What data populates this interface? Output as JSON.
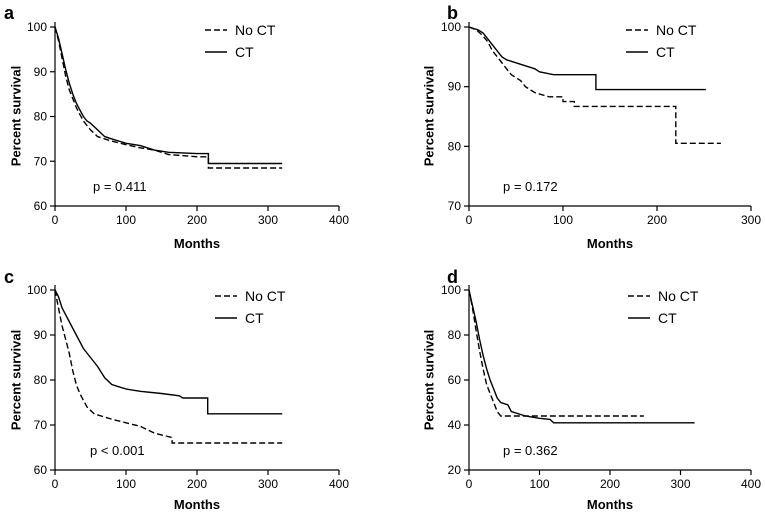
{
  "chart_data": [
    {
      "type": "line",
      "panel_label": "a",
      "xlabel": "Months",
      "ylabel": "Percent survival",
      "xlim": [
        0,
        400
      ],
      "ylim": [
        60,
        100
      ],
      "xticks": [
        "0",
        "100",
        "200",
        "300",
        "400"
      ],
      "yticks": [
        "60",
        "70",
        "80",
        "90",
        "100"
      ],
      "legend": {
        "position": "top-right",
        "entries": [
          "No CT",
          "CT"
        ]
      },
      "annotation": "p = 0.411",
      "series": [
        {
          "name": "No CT",
          "style": "dashed",
          "points": [
            [
              0,
              100
            ],
            [
              5,
              97
            ],
            [
              10,
              93
            ],
            [
              15,
              89
            ],
            [
              20,
              86
            ],
            [
              25,
              84
            ],
            [
              30,
              82
            ],
            [
              35,
              80.5
            ],
            [
              40,
              79
            ],
            [
              50,
              77
            ],
            [
              60,
              75.5
            ],
            [
              70,
              75
            ],
            [
              80,
              74.5
            ],
            [
              100,
              73.7
            ],
            [
              120,
              73
            ],
            [
              140,
              72.5
            ],
            [
              160,
              71.5
            ],
            [
              200,
              71
            ],
            [
              216,
              71
            ],
            [
              216,
              68.5
            ],
            [
              320,
              68.5
            ]
          ]
        },
        {
          "name": "CT",
          "style": "solid",
          "points": [
            [
              0,
              100
            ],
            [
              5,
              97.5
            ],
            [
              10,
              94
            ],
            [
              15,
              90.5
            ],
            [
              20,
              87.5
            ],
            [
              25,
              85
            ],
            [
              30,
              83
            ],
            [
              35,
              81.5
            ],
            [
              40,
              80
            ],
            [
              45,
              79
            ],
            [
              50,
              78.5
            ],
            [
              60,
              77
            ],
            [
              70,
              75.5
            ],
            [
              80,
              75
            ],
            [
              100,
              74
            ],
            [
              120,
              73.5
            ],
            [
              140,
              72.5
            ],
            [
              160,
              72
            ],
            [
              200,
              71.7
            ],
            [
              216,
              71.7
            ],
            [
              216,
              69.5
            ],
            [
              320,
              69.5
            ]
          ]
        }
      ]
    },
    {
      "type": "line",
      "panel_label": "b",
      "xlabel": "Months",
      "ylabel": "Percent survival",
      "xlim": [
        0,
        300
      ],
      "ylim": [
        70,
        100
      ],
      "xticks": [
        "0",
        "100",
        "200",
        "300"
      ],
      "yticks": [
        "70",
        "80",
        "90",
        "100"
      ],
      "legend": {
        "position": "top-right",
        "entries": [
          "No CT",
          "CT"
        ]
      },
      "annotation": "p = 0.172",
      "series": [
        {
          "name": "No CT",
          "style": "dashed",
          "points": [
            [
              0,
              100
            ],
            [
              8,
              99.5
            ],
            [
              15,
              98.5
            ],
            [
              20,
              97.5
            ],
            [
              25,
              96
            ],
            [
              30,
              95
            ],
            [
              35,
              94
            ],
            [
              40,
              93
            ],
            [
              45,
              92
            ],
            [
              55,
              91
            ],
            [
              60,
              90
            ],
            [
              70,
              89
            ],
            [
              85,
              88.3
            ],
            [
              100,
              88.3
            ],
            [
              100,
              87.5
            ],
            [
              112,
              87.5
            ],
            [
              112,
              86.7
            ],
            [
              220,
              86.7
            ],
            [
              220,
              80.5
            ],
            [
              268,
              80.5
            ]
          ]
        },
        {
          "name": "CT",
          "style": "solid",
          "points": [
            [
              0,
              100
            ],
            [
              10,
              99.5
            ],
            [
              15,
              99
            ],
            [
              20,
              98
            ],
            [
              25,
              97
            ],
            [
              30,
              96
            ],
            [
              35,
              95
            ],
            [
              40,
              94.5
            ],
            [
              50,
              94
            ],
            [
              60,
              93.5
            ],
            [
              70,
              93
            ],
            [
              75,
              92.5
            ],
            [
              90,
              92
            ],
            [
              135,
              92
            ],
            [
              135,
              89.5
            ],
            [
              252,
              89.5
            ]
          ]
        }
      ]
    },
    {
      "type": "line",
      "panel_label": "c",
      "xlabel": "Months",
      "ylabel": "Percent survival",
      "xlim": [
        0,
        400
      ],
      "ylim": [
        60,
        100
      ],
      "xticks": [
        "0",
        "100",
        "200",
        "300",
        "400"
      ],
      "yticks": [
        "60",
        "70",
        "80",
        "90",
        "100"
      ],
      "legend": {
        "position": "top-right",
        "entries": [
          "No CT",
          "CT"
        ]
      },
      "annotation": "p < 0.001",
      "series": [
        {
          "name": "No CT",
          "style": "dashed",
          "points": [
            [
              0,
              100
            ],
            [
              5,
              96
            ],
            [
              10,
              92
            ],
            [
              15,
              89
            ],
            [
              20,
              86
            ],
            [
              25,
              82
            ],
            [
              30,
              79
            ],
            [
              35,
              77
            ],
            [
              40,
              75.5
            ],
            [
              45,
              74
            ],
            [
              55,
              72.5
            ],
            [
              65,
              72
            ],
            [
              80,
              71.3
            ],
            [
              100,
              70.5
            ],
            [
              120,
              69.7
            ],
            [
              140,
              68.2
            ],
            [
              165,
              67.2
            ],
            [
              165,
              66
            ],
            [
              320,
              66
            ]
          ]
        },
        {
          "name": "CT",
          "style": "solid",
          "points": [
            [
              0,
              100
            ],
            [
              5,
              98.5
            ],
            [
              10,
              96
            ],
            [
              20,
              93
            ],
            [
              30,
              90
            ],
            [
              40,
              87
            ],
            [
              50,
              85
            ],
            [
              60,
              83
            ],
            [
              70,
              80.5
            ],
            [
              80,
              79
            ],
            [
              90,
              78.5
            ],
            [
              100,
              78
            ],
            [
              120,
              77.5
            ],
            [
              150,
              77
            ],
            [
              175,
              76.5
            ],
            [
              180,
              76
            ],
            [
              215,
              76
            ],
            [
              215,
              72.5
            ],
            [
              320,
              72.5
            ]
          ]
        }
      ]
    },
    {
      "type": "line",
      "panel_label": "d",
      "xlabel": "Months",
      "ylabel": "Percent survival",
      "xlim": [
        0,
        400
      ],
      "ylim": [
        20,
        100
      ],
      "xticks": [
        "0",
        "100",
        "200",
        "300",
        "400"
      ],
      "yticks": [
        "20",
        "40",
        "60",
        "80",
        "100"
      ],
      "legend": {
        "position": "top-right",
        "entries": [
          "No CT",
          "CT"
        ]
      },
      "annotation": "p = 0.362",
      "series": [
        {
          "name": "No CT",
          "style": "dashed",
          "points": [
            [
              0,
              100
            ],
            [
              5,
              92
            ],
            [
              10,
              82
            ],
            [
              15,
              73
            ],
            [
              20,
              65
            ],
            [
              25,
              58
            ],
            [
              30,
              54
            ],
            [
              35,
              50
            ],
            [
              40,
              46
            ],
            [
              45,
              44
            ],
            [
              60,
              44
            ],
            [
              248,
              44
            ]
          ]
        },
        {
          "name": "CT",
          "style": "solid",
          "points": [
            [
              0,
              100
            ],
            [
              5,
              93
            ],
            [
              10,
              86
            ],
            [
              15,
              78
            ],
            [
              20,
              71
            ],
            [
              25,
              65
            ],
            [
              30,
              60
            ],
            [
              35,
              56
            ],
            [
              40,
              52
            ],
            [
              45,
              50
            ],
            [
              55,
              49
            ],
            [
              60,
              46
            ],
            [
              80,
              44
            ],
            [
              100,
              43
            ],
            [
              115,
              42.5
            ],
            [
              120,
              41
            ],
            [
              320,
              41
            ]
          ]
        }
      ]
    }
  ]
}
